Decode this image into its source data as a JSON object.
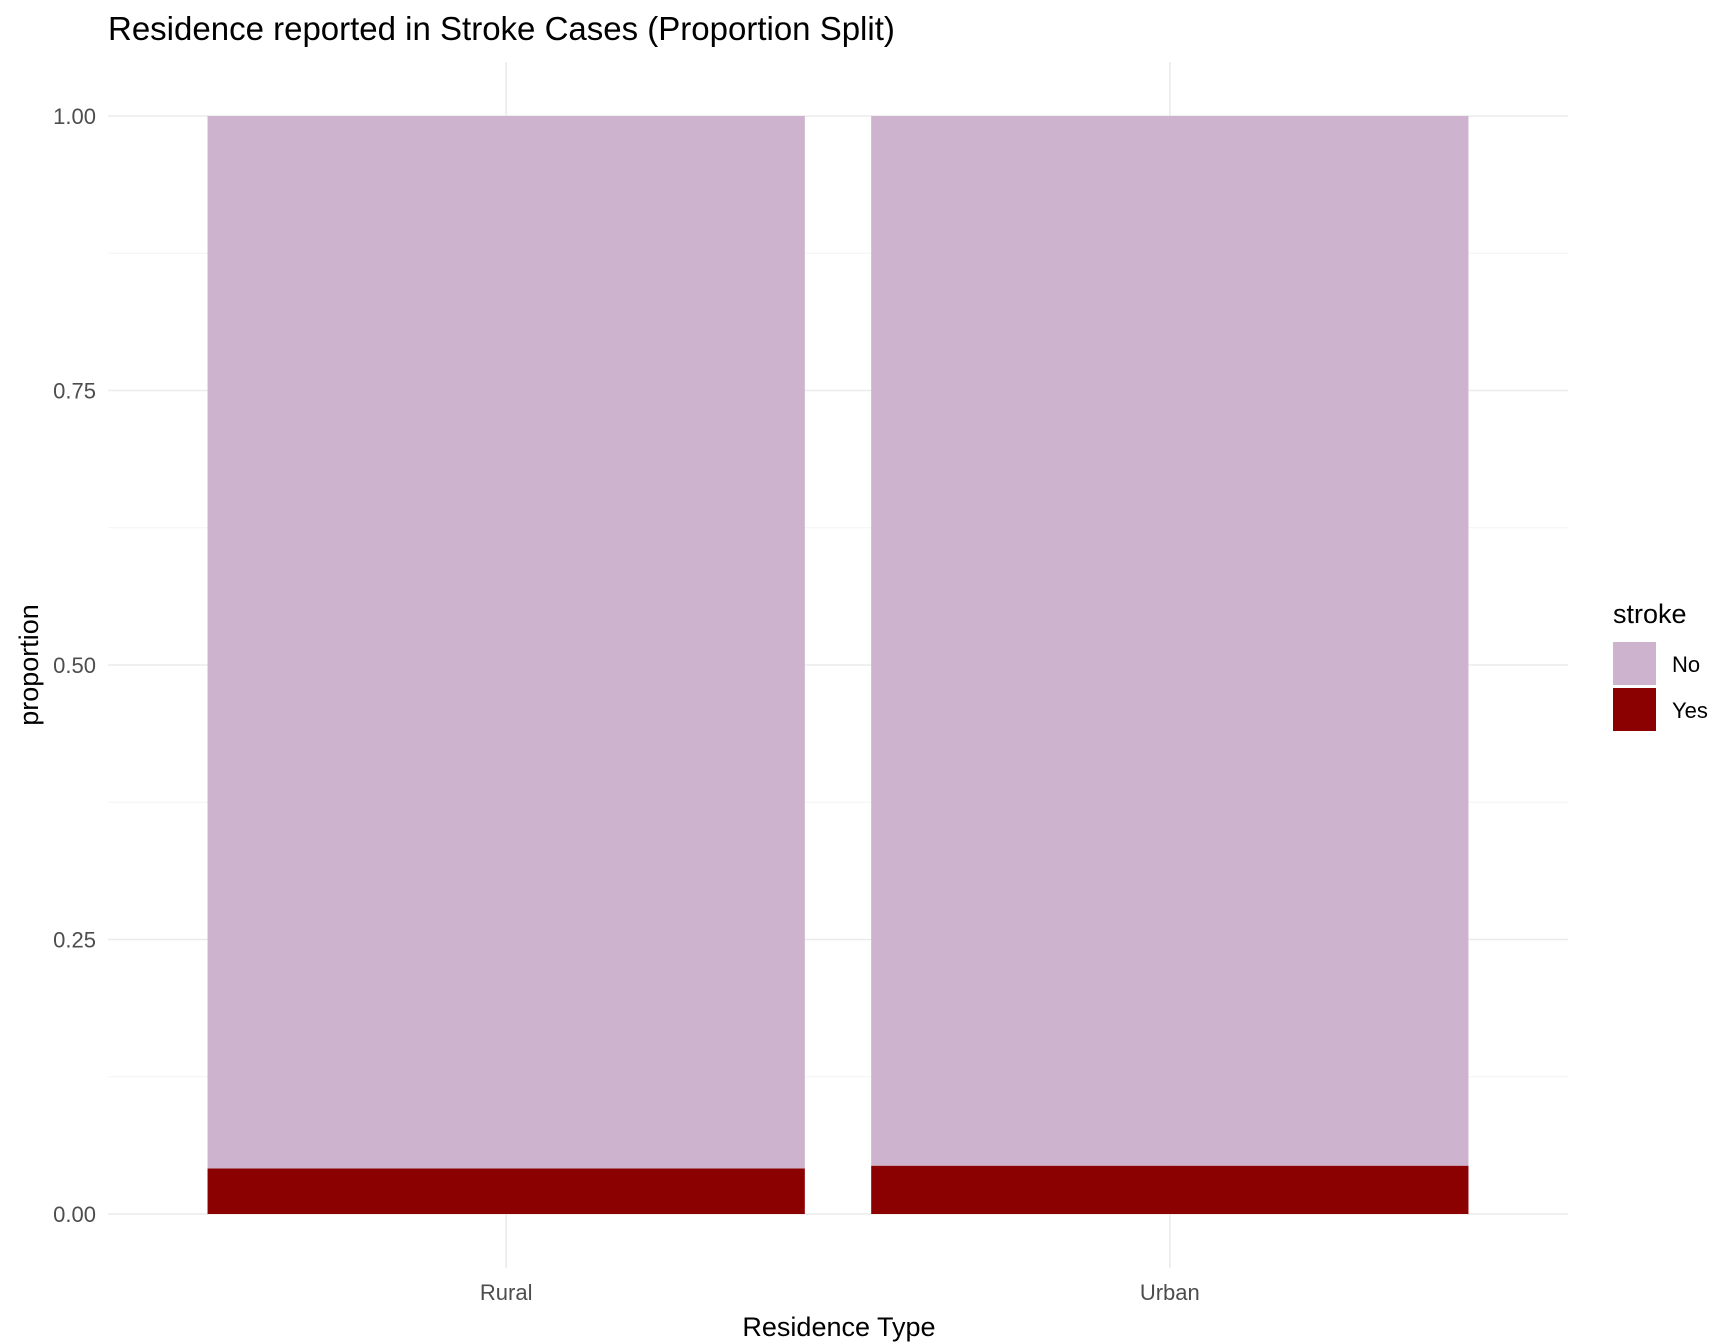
{
  "chart_data": {
    "type": "bar",
    "stacked": true,
    "title": "Residence reported in Stroke Cases (Proportion Split)",
    "xlabel": "Residence Type",
    "ylabel": "proportion",
    "categories": [
      "Rural",
      "Urban"
    ],
    "series": [
      {
        "name": "No",
        "values": [
          0.9585,
          0.956
        ],
        "color": "#cdb3cd"
      },
      {
        "name": "Yes",
        "values": [
          0.0415,
          0.044
        ],
        "color": "#8b0000"
      }
    ],
    "ylim": [
      0,
      1
    ],
    "yticks": [
      0,
      0.25,
      0.5,
      0.75,
      1
    ],
    "ytick_labels": [
      "0.00",
      "0.25",
      "0.50",
      "0.75",
      "1.00"
    ],
    "grid": true,
    "legend": {
      "title": "stroke",
      "placement": "right"
    }
  }
}
